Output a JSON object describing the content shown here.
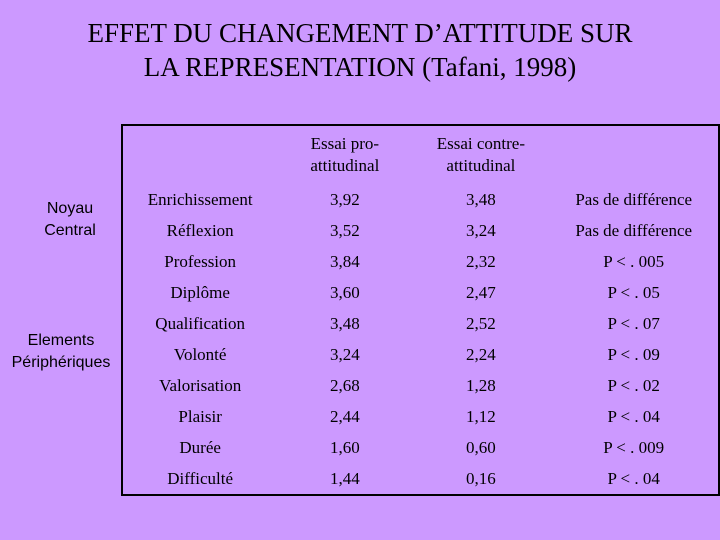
{
  "title": {
    "line1": "EFFET DU CHANGEMENT D’ATTITUDE SUR",
    "line2": "LA REPRESENTATION (Tafani, 1998)"
  },
  "groups": {
    "noyau_line1": "Noyau",
    "noyau_line2": "Central",
    "periph_line1": "Elements",
    "periph_line2": "Périphériques"
  },
  "table": {
    "headers": [
      "",
      "Essai pro-attitudinal",
      "Essai contre-attitudinal",
      ""
    ],
    "header_lines": {
      "pro_line1": "Essai pro-",
      "pro_line2": "attitudinal",
      "contre_line1": "Essai contre-",
      "contre_line2": "attitudinal"
    },
    "rows": [
      {
        "criterion": "Enrichissement",
        "pro": "3,92",
        "contre": "3,48",
        "result": "Pas de différence"
      },
      {
        "criterion": "Réflexion",
        "pro": "3,52",
        "contre": "3,24",
        "result": "Pas de différence"
      },
      {
        "criterion": "Profession",
        "pro": "3,84",
        "contre": "2,32",
        "result": "P < . 005"
      },
      {
        "criterion": "Diplôme",
        "pro": "3,60",
        "contre": "2,47",
        "result": "P < . 05"
      },
      {
        "criterion": "Qualification",
        "pro": "3,48",
        "contre": "2,52",
        "result": "P < . 07"
      },
      {
        "criterion": "Volonté",
        "pro": "3,24",
        "contre": "2,24",
        "result": "P < . 09"
      },
      {
        "criterion": "Valorisation",
        "pro": "2,68",
        "contre": "1,28",
        "result": "P < . 02"
      },
      {
        "criterion": "Plaisir",
        "pro": "2,44",
        "contre": "1,12",
        "result": "P < . 04"
      },
      {
        "criterion": "Durée",
        "pro": "1,60",
        "contre": "0,60",
        "result": "P < . 009"
      },
      {
        "criterion": "Difficulté",
        "pro": "1,44",
        "contre": "0,16",
        "result": "P < . 04"
      }
    ]
  },
  "colors": {
    "background": "#cc99ff",
    "text": "#000000"
  }
}
